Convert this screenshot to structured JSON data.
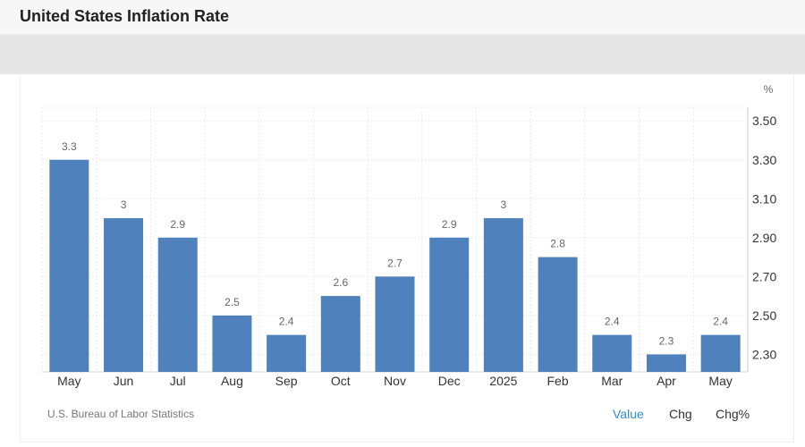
{
  "header": {
    "title": "United States Inflation Rate"
  },
  "chart_data": {
    "type": "bar",
    "title": "United States Inflation Rate",
    "unit": "%",
    "categories": [
      "May",
      "Jun",
      "Jul",
      "Aug",
      "Sep",
      "Oct",
      "Nov",
      "Dec",
      "2025",
      "Feb",
      "Mar",
      "Apr",
      "May"
    ],
    "values": [
      3.3,
      3,
      2.9,
      2.5,
      2.4,
      2.6,
      2.7,
      2.9,
      3,
      2.8,
      2.4,
      2.3,
      2.4
    ],
    "data_labels": [
      "3.3",
      "3",
      "2.9",
      "2.5",
      "2.4",
      "2.6",
      "2.7",
      "2.9",
      "3",
      "2.8",
      "2.4",
      "2.3",
      "2.4"
    ],
    "yticks": [
      "3.50",
      "3.30",
      "3.10",
      "2.90",
      "2.70",
      "2.50",
      "2.30"
    ],
    "ylim": [
      2.21,
      3.57
    ],
    "y_axis_position": "right",
    "grid": true,
    "legend": "none",
    "bar_color": "#4f81bd",
    "source": "U.S. Bureau of Labor Statistics"
  },
  "footer": {
    "tabs": [
      {
        "label": "Value",
        "active": true
      },
      {
        "label": "Chg",
        "active": false
      },
      {
        "label": "Chg%",
        "active": false
      }
    ]
  },
  "colors": {
    "accent": "#2e8ed1",
    "bar": "#4f81bd"
  }
}
